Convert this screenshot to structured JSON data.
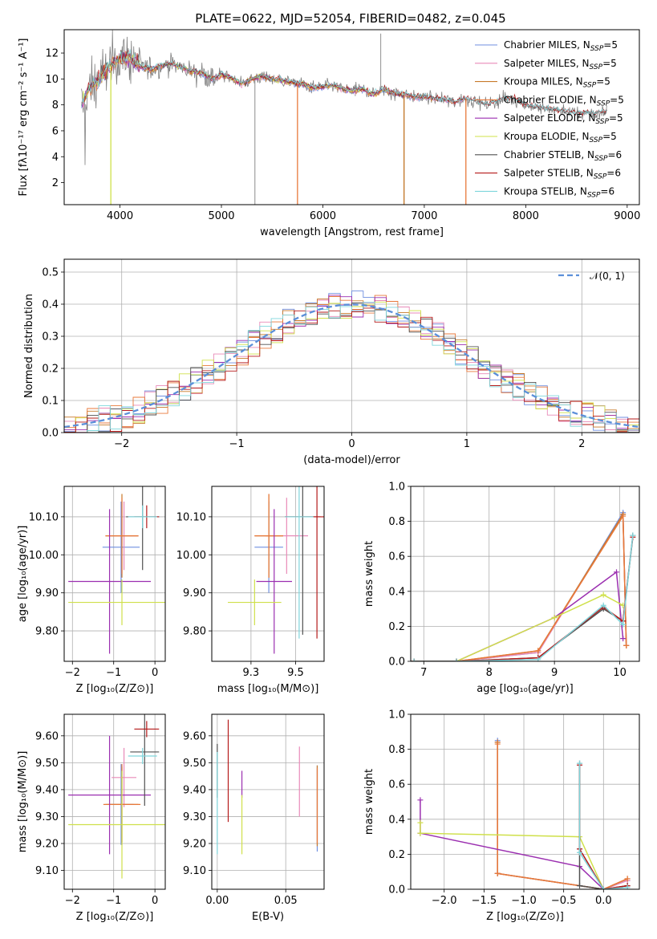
{
  "figure": {
    "title": "PLATE=0622, MJD=52054, FIBERID=0482, z=0.045"
  },
  "colors": {
    "Chabrier MILES": "#6f8fe0",
    "Salpeter MILES": "#e88ab8",
    "Kroupa MILES": "#c77a2a",
    "Chabrier ELODIE": "#e8793b",
    "Salpeter ELODIE": "#9b2fb0",
    "Kroupa ELODIE": "#cfe04a",
    "Chabrier STELIB": "#505050",
    "Salpeter STELIB": "#b51a1a",
    "Kroupa STELIB": "#7fd6dc",
    "normal": "#5b8fd9",
    "spectrum_gray": "#808080"
  },
  "chart_data": [
    {
      "id": "spectrum",
      "type": "line",
      "title": "PLATE=0622, MJD=52054, FIBERID=0482, z=0.045",
      "xlabel": "wavelength [Angstrom, rest frame]",
      "ylabel": "Flux [fλ10⁻¹⁷ erg cm⁻² s⁻¹ A⁻¹]",
      "xlim": [
        3450,
        9120
      ],
      "ylim": [
        0.3,
        13.8
      ],
      "xticks": [
        4000,
        5000,
        6000,
        7000,
        8000,
        9000
      ],
      "yticks": [
        2,
        4,
        6,
        8,
        10,
        12
      ],
      "legend_position": "upper-right",
      "legend": [
        {
          "base": "Chabrier MILES, N",
          "sub": "SSP",
          "tail": "=5"
        },
        {
          "base": "Salpeter MILES, N",
          "sub": "SSP",
          "tail": "=5"
        },
        {
          "base": "Kroupa MILES, N",
          "sub": "SSP",
          "tail": "=5"
        },
        {
          "base": "Chabrier ELODIE, N",
          "sub": "SSP",
          "tail": "=5"
        },
        {
          "base": "Salpeter ELODIE, N",
          "sub": "SSP",
          "tail": "=5"
        },
        {
          "base": "Kroupa ELODIE, N",
          "sub": "SSP",
          "tail": "=5"
        },
        {
          "base": "Chabrier STELIB, N",
          "sub": "SSP",
          "tail": "=6"
        },
        {
          "base": "Salpeter STELIB, N",
          "sub": "SSP",
          "tail": "=6"
        },
        {
          "base": "Kroupa STELIB, N",
          "sub": "SSP",
          "tail": "=6"
        }
      ],
      "continuum": [
        [
          3620,
          8.0
        ],
        [
          3700,
          9.3
        ],
        [
          3800,
          10.0
        ],
        [
          3900,
          11.0
        ],
        [
          4000,
          11.7
        ],
        [
          4100,
          11.6
        ],
        [
          4200,
          11.0
        ],
        [
          4300,
          10.7
        ],
        [
          4400,
          11.0
        ],
        [
          4500,
          11.2
        ],
        [
          4600,
          10.9
        ],
        [
          4700,
          10.6
        ],
        [
          4800,
          10.5
        ],
        [
          4900,
          10.0
        ],
        [
          5000,
          10.3
        ],
        [
          5100,
          10.1
        ],
        [
          5200,
          9.6
        ],
        [
          5300,
          10.0
        ],
        [
          5400,
          10.2
        ],
        [
          5500,
          10.0
        ],
        [
          5600,
          9.9
        ],
        [
          5700,
          9.7
        ],
        [
          5800,
          9.6
        ],
        [
          5900,
          9.3
        ],
        [
          6000,
          9.4
        ],
        [
          6100,
          9.5
        ],
        [
          6200,
          9.2
        ],
        [
          6300,
          9.1
        ],
        [
          6400,
          9.2
        ],
        [
          6500,
          8.8
        ],
        [
          6600,
          9.2
        ],
        [
          6700,
          8.9
        ],
        [
          6800,
          8.8
        ],
        [
          6900,
          8.6
        ],
        [
          7000,
          8.6
        ],
        [
          7100,
          8.5
        ],
        [
          7200,
          8.4
        ],
        [
          7300,
          8.2
        ],
        [
          7400,
          8.5
        ],
        [
          7500,
          8.3
        ],
        [
          7600,
          8.0
        ],
        [
          7700,
          8.2
        ],
        [
          7800,
          8.5
        ],
        [
          7900,
          8.4
        ],
        [
          8000,
          8.0
        ],
        [
          8100,
          7.8
        ],
        [
          8200,
          7.7
        ],
        [
          8300,
          7.6
        ],
        [
          8400,
          7.5
        ],
        [
          8500,
          7.3
        ],
        [
          8600,
          7.4
        ],
        [
          8700,
          7.3
        ],
        [
          8800,
          7.5
        ]
      ]
    },
    {
      "id": "residuals",
      "type": "histogram",
      "xlabel": "(data-model)/error",
      "ylabel": "Normed distribution",
      "xlim": [
        -2.5,
        2.5
      ],
      "ylim": [
        0,
        0.54
      ],
      "xticks": [
        -2,
        -1,
        0,
        1,
        2
      ],
      "yticks": [
        0.0,
        0.1,
        0.2,
        0.3,
        0.4,
        0.5
      ],
      "grid": true,
      "legend_position": "upper-right",
      "legend_label": "𝒩(0, 1)",
      "bin_width": 0.1
    },
    {
      "id": "age_vs_Z",
      "type": "errorbar",
      "xlabel": "Z [log₁₀(Z/Z⊙)]",
      "ylabel": "age  [log₁₀(age/yr)]",
      "xlim": [
        -2.2,
        0.25
      ],
      "ylim": [
        9.72,
        10.18
      ],
      "xticks": [
        -2,
        -1,
        0
      ],
      "yticks": [
        9.8,
        9.9,
        10.0,
        10.1
      ],
      "points": [
        {
          "model": "Chabrier MILES",
          "x": -0.82,
          "xerr": 0.45,
          "y": 10.02,
          "yerr": 0.12
        },
        {
          "model": "Salpeter MILES",
          "x": -0.75,
          "xerr": 0.35,
          "y": 10.05,
          "yerr": 0.09
        },
        {
          "model": "Kroupa MILES",
          "x": -0.8,
          "xerr": 0.4,
          "y": 10.05,
          "yerr": 0.11
        },
        {
          "model": "Chabrier ELODIE",
          "x": -0.8,
          "xerr": 0.4,
          "y": 10.05,
          "yerr": 0.1
        },
        {
          "model": "Salpeter ELODIE",
          "x": -1.1,
          "xerr": 1.0,
          "y": 9.93,
          "yerr": 0.19
        },
        {
          "model": "Kroupa ELODIE",
          "x": -0.8,
          "xerr": 1.3,
          "y": 9.875,
          "yerr": 0.06
        },
        {
          "model": "Chabrier STELIB",
          "x": -0.3,
          "xerr": 0.4,
          "y": 10.1,
          "yerr": 0.14
        },
        {
          "model": "Salpeter STELIB",
          "x": -0.2,
          "xerr": 0.3,
          "y": 10.1,
          "yerr": 0.03
        },
        {
          "model": "Kroupa STELIB",
          "x": -0.3,
          "xerr": 0.35,
          "y": 10.1,
          "yerr": 0.03
        }
      ]
    },
    {
      "id": "age_vs_mass",
      "type": "errorbar",
      "xlabel": "mass [log₁₀(M/M⊙)]",
      "ylabel": "",
      "xlim": [
        9.03,
        9.66
      ],
      "ylim": [
        9.72,
        10.18
      ],
      "xticks": [
        9.25,
        9.5
      ],
      "yticks": [
        9.8,
        9.9,
        10.0,
        10.1
      ],
      "points": [
        {
          "model": "Chabrier MILES",
          "x": 9.35,
          "xerr": 0.08,
          "y": 10.02,
          "yerr": 0.12
        },
        {
          "model": "Salpeter MILES",
          "x": 9.45,
          "xerr": 0.12,
          "y": 10.05,
          "yerr": 0.1
        },
        {
          "model": "Kroupa MILES",
          "x": 9.35,
          "xerr": 0.08,
          "y": 10.05,
          "yerr": 0.11
        },
        {
          "model": "Chabrier ELODIE",
          "x": 9.35,
          "xerr": 0.08,
          "y": 10.05,
          "yerr": 0.11
        },
        {
          "model": "Salpeter ELODIE",
          "x": 9.38,
          "xerr": 0.1,
          "y": 9.93,
          "yerr": 0.19
        },
        {
          "model": "Kroupa ELODIE",
          "x": 9.27,
          "xerr": 0.15,
          "y": 9.875,
          "yerr": 0.06
        },
        {
          "model": "Chabrier STELIB",
          "x": 9.54,
          "xerr": 0.1,
          "y": 10.1,
          "yerr": 0.31
        },
        {
          "model": "Salpeter STELIB",
          "x": 9.62,
          "xerr": 0.18,
          "y": 10.1,
          "yerr": 0.32
        },
        {
          "model": "Kroupa STELIB",
          "x": 9.52,
          "xerr": 0.08,
          "y": 10.1,
          "yerr": 0.32
        }
      ]
    },
    {
      "id": "massweight_vs_age",
      "type": "line",
      "xlabel": "age  [log₁₀(age/yr)]",
      "ylabel": "mass weight",
      "xlim": [
        6.8,
        10.3
      ],
      "ylim": [
        0,
        1.0
      ],
      "xticks": [
        7,
        8,
        9,
        10
      ],
      "yticks": [
        0.0,
        0.2,
        0.4,
        0.6,
        0.8,
        1.0
      ],
      "grid": true,
      "series": [
        {
          "model": "Chabrier MILES",
          "x": [
            6.85,
            7.5,
            8.75,
            10.05,
            10.1
          ],
          "y": [
            0.0,
            0.0,
            0.05,
            0.85,
            0.09
          ]
        },
        {
          "model": "Salpeter MILES",
          "x": [
            6.85,
            7.5,
            8.75,
            10.05,
            10.1
          ],
          "y": [
            0.0,
            0.0,
            0.05,
            0.84,
            0.09
          ]
        },
        {
          "model": "Kroupa MILES",
          "x": [
            6.85,
            7.5,
            8.75,
            10.05,
            10.1
          ],
          "y": [
            0.0,
            0.0,
            0.06,
            0.84,
            0.09
          ]
        },
        {
          "model": "Chabrier ELODIE",
          "x": [
            6.85,
            7.5,
            8.75,
            10.05,
            10.1
          ],
          "y": [
            0.0,
            0.0,
            0.06,
            0.83,
            0.09
          ]
        },
        {
          "model": "Salpeter ELODIE",
          "x": [
            6.85,
            7.5,
            9.0,
            9.95,
            10.05
          ],
          "y": [
            0.0,
            0.0,
            0.25,
            0.51,
            0.13
          ]
        },
        {
          "model": "Kroupa ELODIE",
          "x": [
            6.85,
            7.5,
            9.0,
            9.75,
            10.05
          ],
          "y": [
            0.0,
            0.0,
            0.25,
            0.38,
            0.32
          ]
        },
        {
          "model": "Chabrier STELIB",
          "x": [
            6.85,
            7.5,
            8.75,
            9.75,
            10.05,
            10.2
          ],
          "y": [
            0.0,
            0.0,
            0.02,
            0.3,
            0.23,
            0.72
          ]
        },
        {
          "model": "Salpeter STELIB",
          "x": [
            6.85,
            7.5,
            8.75,
            9.75,
            10.05,
            10.2
          ],
          "y": [
            0.0,
            0.0,
            0.02,
            0.31,
            0.23,
            0.71
          ]
        },
        {
          "model": "Kroupa STELIB",
          "x": [
            6.85,
            7.5,
            8.75,
            9.75,
            10.05,
            10.2
          ],
          "y": [
            0.0,
            0.0,
            0.01,
            0.32,
            0.21,
            0.72
          ]
        }
      ]
    },
    {
      "id": "mass_vs_Z",
      "type": "errorbar",
      "xlabel": "Z [log₁₀(Z/Z⊙)]",
      "ylabel": "mass [log₁₀(M/M⊙)]",
      "xlim": [
        -2.2,
        0.25
      ],
      "ylim": [
        9.03,
        9.68
      ],
      "xticks": [
        -2,
        -1,
        0
      ],
      "yticks": [
        9.1,
        9.2,
        9.3,
        9.4,
        9.5,
        9.6
      ],
      "points": [
        {
          "model": "Chabrier MILES",
          "x": -0.82,
          "xerr": 0.3,
          "y": 9.345,
          "yerr": 0.15
        },
        {
          "model": "Salpeter MILES",
          "x": -0.75,
          "xerr": 0.3,
          "y": 9.445,
          "yerr": 0.11
        },
        {
          "model": "Kroupa MILES",
          "x": -0.8,
          "xerr": 0.4,
          "y": 9.345,
          "yerr": 0.14
        },
        {
          "model": "Chabrier ELODIE",
          "x": -0.8,
          "xerr": 0.45,
          "y": 9.345,
          "yerr": 0.15
        },
        {
          "model": "Salpeter ELODIE",
          "x": -1.1,
          "xerr": 1.0,
          "y": 9.38,
          "yerr": 0.22
        },
        {
          "model": "Kroupa ELODIE",
          "x": -0.8,
          "xerr": 1.3,
          "y": 9.27,
          "yerr": 0.2
        },
        {
          "model": "Chabrier STELIB",
          "x": -0.25,
          "xerr": 0.35,
          "y": 9.54,
          "yerr": 0.2
        },
        {
          "model": "Salpeter STELIB",
          "x": -0.2,
          "xerr": 0.3,
          "y": 9.625,
          "yerr": 0.03
        },
        {
          "model": "Kroupa STELIB",
          "x": -0.3,
          "xerr": 0.35,
          "y": 9.525,
          "yerr": 0.03
        }
      ]
    },
    {
      "id": "mass_vs_EBV",
      "type": "errorbar",
      "xlabel": "E(B-V)",
      "ylabel": "",
      "xlim": [
        -0.004,
        0.078
      ],
      "ylim": [
        9.03,
        9.68
      ],
      "xticks": [
        0.0,
        0.05
      ],
      "xtick_labels": [
        "0.00",
        "0.05"
      ],
      "yticks": [
        9.1,
        9.2,
        9.3,
        9.4,
        9.5,
        9.6
      ],
      "points": [
        {
          "model": "Chabrier MILES",
          "x": 0.073,
          "xerr": 0,
          "y": 9.33,
          "yerr": 0.16
        },
        {
          "model": "Salpeter MILES",
          "x": 0.06,
          "xerr": 0,
          "y": 9.43,
          "yerr": 0.13
        },
        {
          "model": "Kroupa MILES",
          "x": 0.073,
          "xerr": 0,
          "y": 9.34,
          "yerr": 0.15
        },
        {
          "model": "Chabrier ELODIE",
          "x": 0.073,
          "xerr": 0,
          "y": 9.34,
          "yerr": 0.14
        },
        {
          "model": "Salpeter ELODIE",
          "x": 0.018,
          "xerr": 0,
          "y": 9.42,
          "yerr": 0.05
        },
        {
          "model": "Kroupa ELODIE",
          "x": 0.018,
          "xerr": 0,
          "y": 9.27,
          "yerr": 0.11
        },
        {
          "model": "Chabrier STELIB",
          "x": 0.0,
          "xerr": 0,
          "y": 9.47,
          "yerr": 0.1
        },
        {
          "model": "Salpeter STELIB",
          "x": 0.008,
          "xerr": 0,
          "y": 9.47,
          "yerr": 0.19
        },
        {
          "model": "Kroupa STELIB",
          "x": 0.0,
          "xerr": 0,
          "y": 9.35,
          "yerr": 0.19
        }
      ]
    },
    {
      "id": "massweight_vs_Z",
      "type": "line",
      "xlabel": "Z [log₁₀(Z/Z⊙)]",
      "ylabel": "mass weight",
      "xlim": [
        -2.42,
        0.45
      ],
      "ylim": [
        0,
        1.0
      ],
      "xticks": [
        -2.0,
        -1.5,
        -1.0,
        -0.5,
        0.0
      ],
      "xtick_labels": [
        "−2.0",
        "−1.5",
        "−1.0",
        "−0.5",
        "0.0"
      ],
      "yticks": [
        0.0,
        0.2,
        0.4,
        0.6,
        0.8,
        1.0
      ],
      "grid": true,
      "series": [
        {
          "model": "Chabrier MILES",
          "x": [
            -1.33,
            -1.33,
            -1.33,
            0.0,
            0.3
          ],
          "y": [
            0.85,
            0.09,
            0.09,
            0.0,
            0.05
          ]
        },
        {
          "model": "Salpeter MILES",
          "x": [
            -1.33,
            -1.33,
            0.0,
            0.3
          ],
          "y": [
            0.84,
            0.09,
            0.0,
            0.05
          ]
        },
        {
          "model": "Kroupa MILES",
          "x": [
            -1.33,
            -1.33,
            0.0,
            0.3
          ],
          "y": [
            0.84,
            0.09,
            0.0,
            0.06
          ]
        },
        {
          "model": "Chabrier ELODIE",
          "x": [
            -1.33,
            -1.33,
            0.0,
            0.3
          ],
          "y": [
            0.83,
            0.09,
            0.0,
            0.06
          ]
        },
        {
          "model": "Salpeter ELODIE",
          "x": [
            -2.3,
            -2.3,
            -0.3,
            0.0
          ],
          "y": [
            0.51,
            0.32,
            0.13,
            0.0
          ]
        },
        {
          "model": "Kroupa ELODIE",
          "x": [
            -2.3,
            -2.3,
            -0.3,
            0.0
          ],
          "y": [
            0.38,
            0.32,
            0.3,
            0.0
          ]
        },
        {
          "model": "Chabrier STELIB",
          "x": [
            -0.3,
            -0.3,
            -0.3,
            0.0,
            0.3
          ],
          "y": [
            0.72,
            0.23,
            0.02,
            0.0,
            0.02
          ]
        },
        {
          "model": "Salpeter STELIB",
          "x": [
            -0.3,
            -0.3,
            0.0,
            0.3
          ],
          "y": [
            0.71,
            0.23,
            0.0,
            0.02
          ]
        },
        {
          "model": "Kroupa STELIB",
          "x": [
            -0.3,
            -0.3,
            0.0,
            0.3
          ],
          "y": [
            0.72,
            0.21,
            0.0,
            0.01
          ]
        }
      ]
    }
  ]
}
